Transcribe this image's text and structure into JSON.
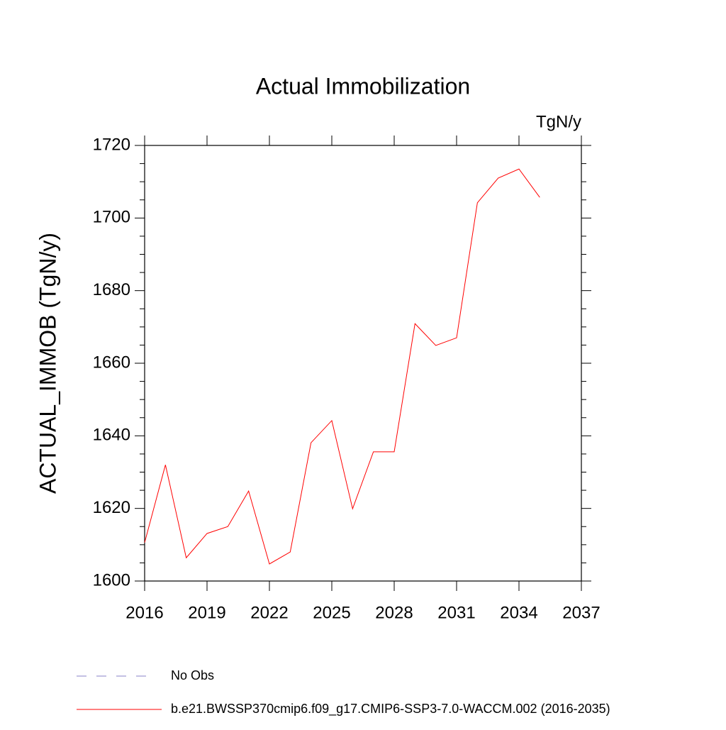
{
  "chart_data": {
    "type": "line",
    "title": "Actual Immobilization",
    "units": "TgN/y",
    "y_label": "ACTUAL_IMMOB  (TgN/y)",
    "x": [
      2016,
      2017,
      2018,
      2019,
      2020,
      2021,
      2022,
      2023,
      2024,
      2025,
      2026,
      2027,
      2028,
      2029,
      2030,
      2031,
      2032,
      2033,
      2034,
      2035
    ],
    "series": [
      {
        "name": "b.e21.BWSSP370cmip6.f09_g17.CMIP6-SSP3-7.0-WACCM.002 (2016-2035)",
        "color": "#ff0000",
        "values": [
          1610.6,
          1632.0,
          1606.4,
          1613.1,
          1615.0,
          1624.8,
          1604.7,
          1608.0,
          1638.1,
          1644.2,
          1619.9,
          1635.6,
          1635.6,
          1670.9,
          1664.9,
          1667.0,
          1704.2,
          1711.0,
          1713.5,
          1705.7
        ]
      }
    ],
    "obs_legend": {
      "name": "No Obs",
      "color": "#8a80c8"
    },
    "xlim": [
      2016,
      2037
    ],
    "xticks": [
      2016,
      2019,
      2022,
      2025,
      2028,
      2031,
      2034,
      2037
    ],
    "ylim": [
      1600,
      1720
    ],
    "yticks": [
      1600,
      1620,
      1640,
      1660,
      1680,
      1700,
      1720
    ],
    "yminorticks": [
      1605,
      1610,
      1615,
      1625,
      1630,
      1635,
      1645,
      1650,
      1655,
      1665,
      1670,
      1675,
      1685,
      1690,
      1695,
      1705,
      1710,
      1715
    ]
  }
}
